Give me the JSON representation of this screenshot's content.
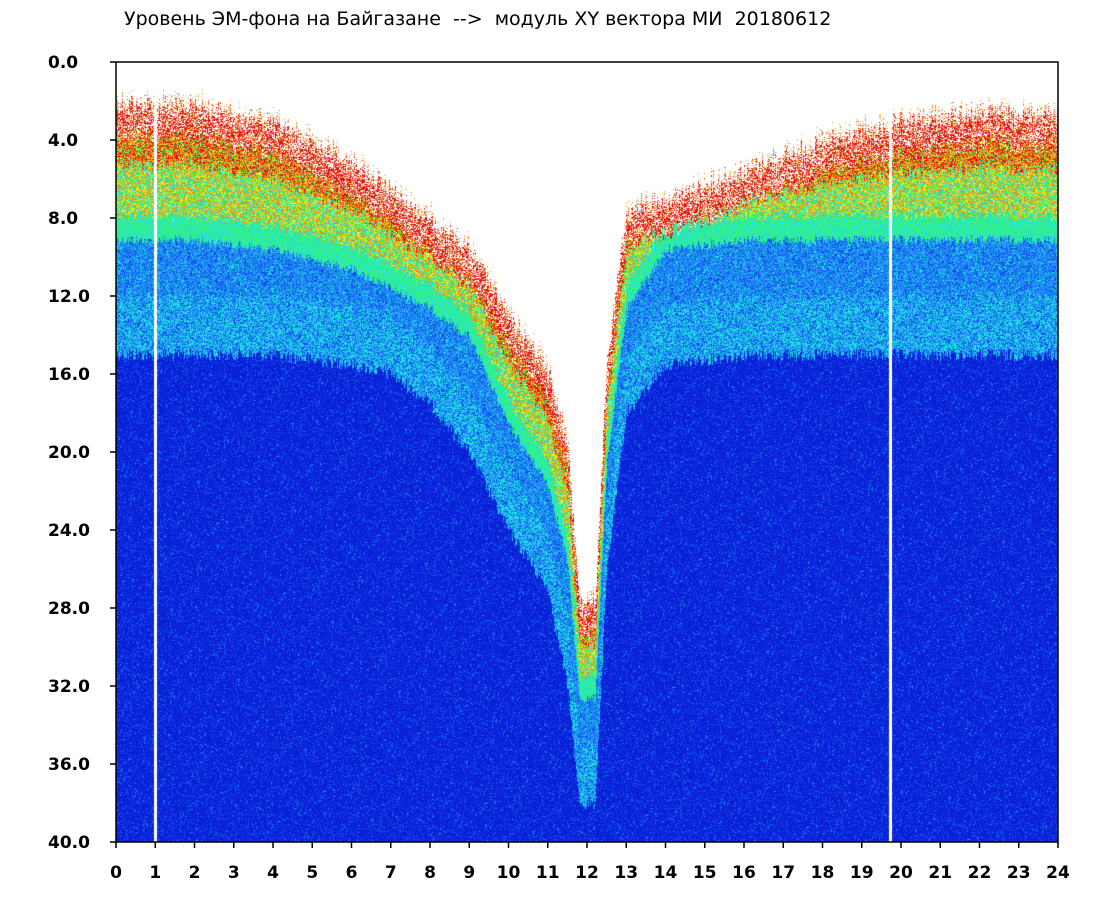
{
  "chart_data": {
    "type": "heatmap",
    "title": "Уровень ЭМ-фона на Байгазане  -->  модуль XY вектора МИ  20180612",
    "xlabel": "",
    "ylabel": "",
    "xlim": [
      0,
      24
    ],
    "ylim": [
      0.0,
      40.0
    ],
    "y_inverted": true,
    "x_ticks": [
      "0",
      "1",
      "2",
      "3",
      "4",
      "5",
      "6",
      "7",
      "8",
      "9",
      "10",
      "11",
      "12",
      "13",
      "14",
      "15",
      "16",
      "17",
      "18",
      "19",
      "20",
      "21",
      "22",
      "23",
      "24"
    ],
    "y_ticks": [
      "0.0",
      "4.0",
      "8.0",
      "12.0",
      "16.0",
      "20.0",
      "24.0",
      "28.0",
      "32.0",
      "36.0",
      "40.0"
    ],
    "colormap": [
      "#0a1fd6",
      "#0f45ee",
      "#1f86f5",
      "#21e0e3",
      "#36f27a",
      "#e8f51c",
      "#f08a10",
      "#e01010",
      "#ffffff"
    ],
    "band_edges": [
      {
        "hour": 0,
        "top": 2.5,
        "band_end": 8.5,
        "cyan_end": 15.0
      },
      {
        "hour": 2,
        "top": 2.6,
        "band_end": 8.5,
        "cyan_end": 15.0
      },
      {
        "hour": 4,
        "top": 3.5,
        "band_end": 9.0,
        "cyan_end": 15.0
      },
      {
        "hour": 6,
        "top": 5.5,
        "band_end": 10.0,
        "cyan_end": 15.5
      },
      {
        "hour": 7,
        "top": 7.0,
        "band_end": 11.0,
        "cyan_end": 16.0
      },
      {
        "hour": 8,
        "top": 8.5,
        "band_end": 12.0,
        "cyan_end": 17.5
      },
      {
        "hour": 9,
        "top": 10.0,
        "band_end": 13.5,
        "cyan_end": 20.0
      },
      {
        "hour": 10,
        "top": 13.5,
        "band_end": 18.0,
        "cyan_end": 24.0
      },
      {
        "hour": 11,
        "top": 16.0,
        "band_end": 21.0,
        "cyan_end": 27.0
      },
      {
        "hour": 11.5,
        "top": 20.0,
        "band_end": 25.0,
        "cyan_end": 32.0
      },
      {
        "hour": 11.8,
        "top": 28.0,
        "band_end": 32.0,
        "cyan_end": 38.0
      },
      {
        "hour": 12.2,
        "top": 28.0,
        "band_end": 32.0,
        "cyan_end": 38.0
      },
      {
        "hour": 12.5,
        "top": 16.0,
        "band_end": 20.0,
        "cyan_end": 26.0
      },
      {
        "hour": 13,
        "top": 8.0,
        "band_end": 12.0,
        "cyan_end": 18.0
      },
      {
        "hour": 14,
        "top": 7.5,
        "band_end": 9.0,
        "cyan_end": 15.5
      },
      {
        "hour": 16,
        "top": 6.0,
        "band_end": 8.5,
        "cyan_end": 15.0
      },
      {
        "hour": 18,
        "top": 4.5,
        "band_end": 8.5,
        "cyan_end": 15.0
      },
      {
        "hour": 20,
        "top": 3.5,
        "band_end": 8.5,
        "cyan_end": 15.0
      },
      {
        "hour": 22,
        "top": 3.0,
        "band_end": 8.5,
        "cyan_end": 15.0
      },
      {
        "hour": 24,
        "top": 3.0,
        "band_end": 8.5,
        "cyan_end": 15.0
      }
    ],
    "white_gaps_hours": [
      0.99,
      19.72
    ],
    "grid": false,
    "legend": "none"
  }
}
